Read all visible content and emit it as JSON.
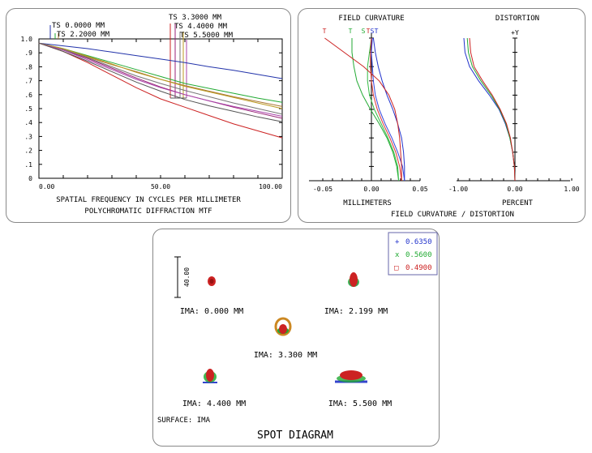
{
  "mtf": {
    "type": "line",
    "title": "POLYCHROMATIC DIFFRACTION MTF",
    "xlabel": "SPATIAL FREQUENCY IN CYCLES PER MILLIMETER",
    "ylabel": "",
    "xlim": [
      0,
      100
    ],
    "ylim": [
      0,
      1
    ],
    "x_ticks": [
      "0.00",
      "50.00",
      "100.00"
    ],
    "y_ticks": [
      "0",
      ".1",
      ".2",
      ".3",
      ".4",
      ".5",
      ".6",
      ".7",
      ".8",
      ".9",
      "1.0"
    ],
    "field_labels": [
      "TS 0.0000 MM",
      "TS 2.2000 MM",
      "TS 3.3000 MM",
      "TS 4.4000 MM",
      "TS 5.5000 MM"
    ],
    "series": [
      {
        "name": "TS 0.0000 MM T",
        "color": "#2233aa",
        "x": [
          0,
          10,
          20,
          30,
          40,
          50,
          60,
          70,
          80,
          90,
          100
        ],
        "y": [
          0.97,
          0.95,
          0.93,
          0.905,
          0.88,
          0.855,
          0.83,
          0.8,
          0.775,
          0.745,
          0.715
        ]
      },
      {
        "name": "TS 2.2000 MM T",
        "color": "#22aa33",
        "x": [
          0,
          10,
          20,
          30,
          40,
          50,
          60,
          70,
          80,
          90,
          100
        ],
        "y": [
          0.97,
          0.93,
          0.88,
          0.83,
          0.78,
          0.73,
          0.68,
          0.645,
          0.61,
          0.575,
          0.545
        ]
      },
      {
        "name": "TS 2.2000 MM S",
        "color": "#aa7733",
        "x": [
          0,
          10,
          20,
          30,
          40,
          50,
          60,
          70,
          80,
          90,
          100
        ],
        "y": [
          0.97,
          0.925,
          0.87,
          0.815,
          0.765,
          0.71,
          0.665,
          0.625,
          0.585,
          0.55,
          0.515
        ]
      },
      {
        "name": "TS 3.3000 MM T",
        "color": "#cc2222",
        "x": [
          0,
          10,
          20,
          30,
          40,
          50,
          60,
          70,
          80,
          90,
          100
        ],
        "y": [
          0.97,
          0.91,
          0.83,
          0.74,
          0.65,
          0.57,
          0.51,
          0.45,
          0.39,
          0.34,
          0.29
        ]
      },
      {
        "name": "TS 3.3000 MM S",
        "color": "#992277",
        "x": [
          0,
          10,
          20,
          30,
          40,
          50,
          60,
          70,
          80,
          90,
          100
        ],
        "y": [
          0.97,
          0.92,
          0.86,
          0.79,
          0.72,
          0.655,
          0.6,
          0.555,
          0.51,
          0.47,
          0.43
        ]
      },
      {
        "name": "TS 4.4000 MM T",
        "color": "#777777",
        "x": [
          0,
          10,
          20,
          30,
          40,
          50,
          60,
          70,
          80,
          90,
          100
        ],
        "y": [
          0.97,
          0.925,
          0.865,
          0.8,
          0.735,
          0.68,
          0.63,
          0.585,
          0.54,
          0.5,
          0.46
        ]
      },
      {
        "name": "TS 4.4000 MM S",
        "color": "#bb9922",
        "x": [
          0,
          10,
          20,
          30,
          40,
          50,
          60,
          70,
          80,
          90,
          100
        ],
        "y": [
          0.97,
          0.93,
          0.875,
          0.82,
          0.76,
          0.71,
          0.66,
          0.62,
          0.58,
          0.54,
          0.5
        ]
      },
      {
        "name": "TS 5.5000 MM T",
        "color": "#aa44aa",
        "x": [
          0,
          10,
          20,
          30,
          40,
          50,
          60,
          70,
          80,
          90,
          100
        ],
        "y": [
          0.97,
          0.92,
          0.85,
          0.78,
          0.71,
          0.65,
          0.6,
          0.555,
          0.515,
          0.48,
          0.445
        ]
      },
      {
        "name": "TS 5.5000 MM S",
        "color": "#555555",
        "x": [
          0,
          10,
          20,
          30,
          40,
          50,
          60,
          70,
          80,
          90,
          100
        ],
        "y": [
          0.97,
          0.91,
          0.84,
          0.765,
          0.69,
          0.625,
          0.565,
          0.52,
          0.48,
          0.44,
          0.405
        ]
      }
    ]
  },
  "field_curvature": {
    "type": "line",
    "title": "FIELD CURVATURE",
    "xlabel": "MILLIMETERS",
    "xlim": [
      -0.05,
      0.05
    ],
    "x_ticks": [
      "-0.05",
      "0.00",
      "0.05"
    ],
    "markers": [
      {
        "label": "T",
        "color": "#cc2222"
      },
      {
        "label": "T",
        "color": "#22aa33"
      },
      {
        "label": "S",
        "color": "#22aa33"
      },
      {
        "label": "T",
        "color": "#cc2222"
      },
      {
        "label": "S",
        "color": "#2233cc"
      },
      {
        "label": "T",
        "color": "#2233cc"
      }
    ],
    "series": [
      {
        "name": "0.6350 T",
        "color": "#2233cc",
        "field": [
          0,
          0.1,
          0.2,
          0.3,
          0.4,
          0.5,
          0.6,
          0.7,
          0.8,
          0.9,
          1.0
        ],
        "x": [
          0.034,
          0.034,
          0.033,
          0.031,
          0.027,
          0.022,
          0.016,
          0.011,
          0.007,
          0.004,
          0.002
        ]
      },
      {
        "name": "0.6350 S",
        "color": "#3344dd",
        "field": [
          0,
          0.1,
          0.2,
          0.3,
          0.4,
          0.5,
          0.6,
          0.7,
          0.8,
          0.9,
          1.0
        ],
        "x": [
          0.034,
          0.032,
          0.027,
          0.021,
          0.014,
          0.008,
          0.004,
          0.002,
          0.001,
          0.0,
          0.001
        ]
      },
      {
        "name": "0.5600 T",
        "color": "#22aa33",
        "field": [
          0,
          0.1,
          0.2,
          0.3,
          0.4,
          0.5,
          0.6,
          0.7,
          0.8,
          0.9,
          1.0
        ],
        "x": [
          0.028,
          0.026,
          0.022,
          0.016,
          0.008,
          -0.001,
          -0.009,
          -0.015,
          -0.018,
          -0.02,
          -0.02
        ]
      },
      {
        "name": "0.5600 S",
        "color": "#33bb44",
        "field": [
          0,
          0.1,
          0.2,
          0.3,
          0.4,
          0.5,
          0.6,
          0.7,
          0.8,
          0.9,
          1.0
        ],
        "x": [
          0.028,
          0.027,
          0.023,
          0.017,
          0.01,
          0.003,
          -0.002,
          -0.004,
          -0.004,
          -0.002,
          0.0
        ]
      },
      {
        "name": "0.4900 T",
        "color": "#cc2222",
        "field": [
          0,
          0.1,
          0.2,
          0.3,
          0.4,
          0.5,
          0.6,
          0.7,
          0.8,
          0.9,
          1.0
        ],
        "x": [
          0.031,
          0.031,
          0.03,
          0.029,
          0.027,
          0.024,
          0.018,
          0.008,
          -0.008,
          -0.028,
          -0.048
        ]
      },
      {
        "name": "0.4900 S",
        "color": "#dd3333",
        "field": [
          0,
          0.1,
          0.2,
          0.3,
          0.4,
          0.5,
          0.6,
          0.7,
          0.8,
          0.9,
          1.0
        ],
        "x": [
          0.031,
          0.029,
          0.025,
          0.019,
          0.012,
          0.006,
          0.002,
          0.0,
          -0.001,
          -0.001,
          0.0
        ]
      }
    ]
  },
  "distortion": {
    "type": "line",
    "title": "DISTORTION",
    "xlabel": "PERCENT",
    "axis_label": "+Y",
    "xlim": [
      -1.0,
      1.0
    ],
    "x_ticks": [
      "-1.00",
      "0.00",
      "1.00"
    ],
    "series": [
      {
        "name": "0.6350",
        "color": "#2233cc",
        "field": [
          0,
          0.1,
          0.2,
          0.3,
          0.4,
          0.5,
          0.6,
          0.7,
          0.8,
          0.9,
          1.0
        ],
        "x": [
          0,
          -0.01,
          -0.04,
          -0.09,
          -0.17,
          -0.28,
          -0.45,
          -0.64,
          -0.8,
          -0.88,
          -0.9
        ]
      },
      {
        "name": "0.5600",
        "color": "#22aa33",
        "field": [
          0,
          0.1,
          0.2,
          0.3,
          0.4,
          0.5,
          0.6,
          0.7,
          0.8,
          0.9,
          1.0
        ],
        "x": [
          0,
          -0.01,
          -0.04,
          -0.09,
          -0.16,
          -0.27,
          -0.42,
          -0.6,
          -0.75,
          -0.82,
          -0.84
        ]
      },
      {
        "name": "0.4900",
        "color": "#cc2222",
        "field": [
          0,
          0.1,
          0.2,
          0.3,
          0.4,
          0.5,
          0.6,
          0.7,
          0.8,
          0.9,
          1.0
        ],
        "x": [
          0,
          -0.01,
          -0.04,
          -0.08,
          -0.15,
          -0.26,
          -0.4,
          -0.57,
          -0.72,
          -0.78,
          -0.8
        ]
      }
    ]
  },
  "field_curv_dist_caption": "FIELD CURVATURE / DISTORTION",
  "spot": {
    "title": "SPOT DIAGRAM",
    "surface_label": "SURFACE: IMA",
    "scale_label": "40.00",
    "legend": [
      {
        "symbol": "+",
        "wavelength": "0.6350",
        "color": "#2233cc"
      },
      {
        "symbol": "x",
        "wavelength": "0.5600",
        "color": "#22aa33"
      },
      {
        "symbol": "□",
        "wavelength": "0.4900",
        "color": "#cc2222"
      }
    ],
    "fields": [
      {
        "label": "IMA: 0.000 MM"
      },
      {
        "label": "IMA: 2.199 MM"
      },
      {
        "label": "IMA: 3.300 MM"
      },
      {
        "label": "IMA: 4.400 MM"
      },
      {
        "label": "IMA: 5.500 MM"
      }
    ]
  }
}
